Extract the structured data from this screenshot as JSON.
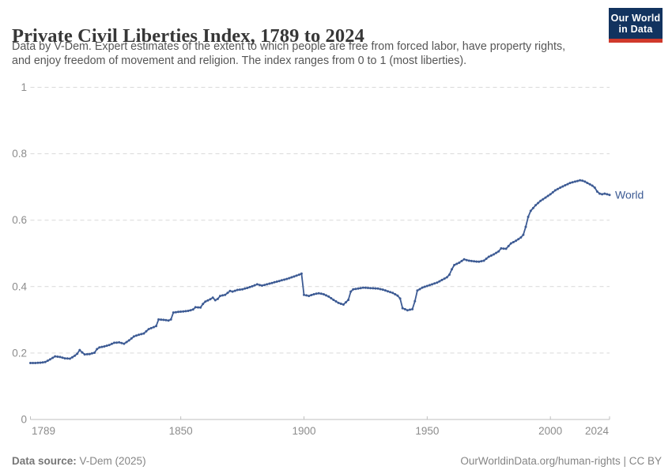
{
  "header": {
    "title": "Private Civil Liberties Index, 1789 to 2024",
    "subtitle_line1": "Data by V-Dem. Expert estimates of the extent to which people are free from forced labor, have property rights,",
    "subtitle_line2": "and enjoy freedom of movement and religion. The index ranges from 0 to 1 (most liberties)."
  },
  "logo": {
    "line1": "Our World",
    "line2": "in Data",
    "bg_color": "#12335f",
    "accent_color": "#d0392b"
  },
  "chart_data": {
    "type": "line",
    "title": "Private Civil Liberties Index, 1789 to 2024",
    "xlabel": "",
    "ylabel": "",
    "xlim": [
      1789,
      2024
    ],
    "ylim": [
      0,
      1
    ],
    "grid": "horizontal dashed",
    "legend_position": "end-of-line label",
    "y_ticks": [
      0,
      0.2,
      0.4,
      0.6,
      0.8,
      1
    ],
    "y_tick_labels": [
      "0",
      "0.2",
      "0.4",
      "0.6",
      "0.8",
      "1"
    ],
    "x_ticks": [
      1789,
      1850,
      1900,
      1950,
      2000,
      2024
    ],
    "x_tick_labels": [
      "1789",
      "1850",
      "1900",
      "1950",
      "2000",
      "2024"
    ],
    "series": [
      {
        "name": "World",
        "color": "#3d5b94",
        "points": [
          [
            1789,
            0.17
          ],
          [
            1791,
            0.17
          ],
          [
            1793,
            0.171
          ],
          [
            1795,
            0.173
          ],
          [
            1797,
            0.181
          ],
          [
            1799,
            0.19
          ],
          [
            1801,
            0.188
          ],
          [
            1803,
            0.184
          ],
          [
            1805,
            0.183
          ],
          [
            1807,
            0.192
          ],
          [
            1808,
            0.198
          ],
          [
            1809,
            0.209
          ],
          [
            1810,
            0.202
          ],
          [
            1811,
            0.196
          ],
          [
            1813,
            0.197
          ],
          [
            1815,
            0.201
          ],
          [
            1816,
            0.212
          ],
          [
            1817,
            0.217
          ],
          [
            1819,
            0.22
          ],
          [
            1821,
            0.224
          ],
          [
            1823,
            0.231
          ],
          [
            1825,
            0.232
          ],
          [
            1827,
            0.228
          ],
          [
            1829,
            0.238
          ],
          [
            1831,
            0.25
          ],
          [
            1833,
            0.255
          ],
          [
            1835,
            0.259
          ],
          [
            1837,
            0.272
          ],
          [
            1839,
            0.278
          ],
          [
            1840,
            0.281
          ],
          [
            1841,
            0.301
          ],
          [
            1843,
            0.3
          ],
          [
            1845,
            0.298
          ],
          [
            1846,
            0.301
          ],
          [
            1847,
            0.322
          ],
          [
            1849,
            0.324
          ],
          [
            1851,
            0.325
          ],
          [
            1853,
            0.327
          ],
          [
            1855,
            0.331
          ],
          [
            1856,
            0.338
          ],
          [
            1858,
            0.337
          ],
          [
            1859,
            0.348
          ],
          [
            1860,
            0.355
          ],
          [
            1862,
            0.362
          ],
          [
            1863,
            0.367
          ],
          [
            1864,
            0.359
          ],
          [
            1865,
            0.363
          ],
          [
            1866,
            0.372
          ],
          [
            1868,
            0.375
          ],
          [
            1869,
            0.381
          ],
          [
            1870,
            0.387
          ],
          [
            1871,
            0.385
          ],
          [
            1873,
            0.39
          ],
          [
            1875,
            0.392
          ],
          [
            1877,
            0.396
          ],
          [
            1879,
            0.401
          ],
          [
            1881,
            0.407
          ],
          [
            1883,
            0.403
          ],
          [
            1885,
            0.407
          ],
          [
            1887,
            0.411
          ],
          [
            1889,
            0.415
          ],
          [
            1891,
            0.419
          ],
          [
            1893,
            0.423
          ],
          [
            1895,
            0.428
          ],
          [
            1897,
            0.433
          ],
          [
            1899,
            0.439
          ],
          [
            1900,
            0.375
          ],
          [
            1902,
            0.372
          ],
          [
            1904,
            0.377
          ],
          [
            1906,
            0.38
          ],
          [
            1908,
            0.377
          ],
          [
            1910,
            0.37
          ],
          [
            1912,
            0.36
          ],
          [
            1914,
            0.351
          ],
          [
            1916,
            0.346
          ],
          [
            1918,
            0.36
          ],
          [
            1919,
            0.385
          ],
          [
            1920,
            0.392
          ],
          [
            1922,
            0.394
          ],
          [
            1924,
            0.397
          ],
          [
            1926,
            0.396
          ],
          [
            1928,
            0.395
          ],
          [
            1930,
            0.394
          ],
          [
            1932,
            0.391
          ],
          [
            1934,
            0.386
          ],
          [
            1936,
            0.381
          ],
          [
            1938,
            0.373
          ],
          [
            1939,
            0.364
          ],
          [
            1940,
            0.335
          ],
          [
            1942,
            0.329
          ],
          [
            1944,
            0.332
          ],
          [
            1945,
            0.356
          ],
          [
            1946,
            0.388
          ],
          [
            1948,
            0.397
          ],
          [
            1950,
            0.402
          ],
          [
            1952,
            0.407
          ],
          [
            1954,
            0.412
          ],
          [
            1956,
            0.42
          ],
          [
            1958,
            0.428
          ],
          [
            1959,
            0.436
          ],
          [
            1960,
            0.452
          ],
          [
            1961,
            0.465
          ],
          [
            1963,
            0.472
          ],
          [
            1965,
            0.482
          ],
          [
            1967,
            0.478
          ],
          [
            1969,
            0.476
          ],
          [
            1971,
            0.475
          ],
          [
            1973,
            0.478
          ],
          [
            1975,
            0.49
          ],
          [
            1977,
            0.497
          ],
          [
            1979,
            0.506
          ],
          [
            1980,
            0.515
          ],
          [
            1982,
            0.514
          ],
          [
            1984,
            0.53
          ],
          [
            1986,
            0.538
          ],
          [
            1988,
            0.548
          ],
          [
            1989,
            0.556
          ],
          [
            1990,
            0.58
          ],
          [
            1991,
            0.61
          ],
          [
            1992,
            0.628
          ],
          [
            1994,
            0.645
          ],
          [
            1996,
            0.658
          ],
          [
            1998,
            0.668
          ],
          [
            2000,
            0.678
          ],
          [
            2002,
            0.69
          ],
          [
            2004,
            0.698
          ],
          [
            2006,
            0.705
          ],
          [
            2008,
            0.712
          ],
          [
            2010,
            0.716
          ],
          [
            2012,
            0.72
          ],
          [
            2013,
            0.719
          ],
          [
            2014,
            0.716
          ],
          [
            2015,
            0.712
          ],
          [
            2016,
            0.708
          ],
          [
            2017,
            0.704
          ],
          [
            2018,
            0.698
          ],
          [
            2019,
            0.686
          ],
          [
            2020,
            0.68
          ],
          [
            2021,
            0.678
          ],
          [
            2022,
            0.68
          ],
          [
            2023,
            0.678
          ],
          [
            2024,
            0.676
          ]
        ]
      }
    ],
    "colors": {
      "gridline": "#d9d9d9",
      "axis": "#bfbfbf",
      "tick_label": "#8c8c8c"
    }
  },
  "footer": {
    "source_label": "Data source:",
    "source_value": " V-Dem (2025)",
    "link": "OurWorldinData.org/human-rights",
    "license": " | CC BY"
  }
}
